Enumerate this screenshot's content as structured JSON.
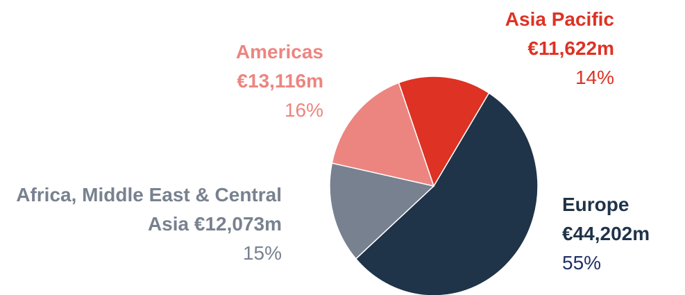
{
  "chart_data": {
    "type": "pie",
    "categories": [
      "Europe",
      "Africa, Middle East & Central Asia",
      "Americas",
      "Asia Pacific"
    ],
    "values": [
      44202,
      12073,
      13116,
      11622
    ],
    "value_labels": [
      "€44,202m",
      "€12,073m",
      "€13,116m",
      "€11,622m"
    ],
    "percent_labels": [
      "55%",
      "15%",
      "16%",
      "14%"
    ],
    "colors": [
      "#1f3349",
      "#78818f",
      "#ec8580",
      "#dd3224"
    ]
  }
}
